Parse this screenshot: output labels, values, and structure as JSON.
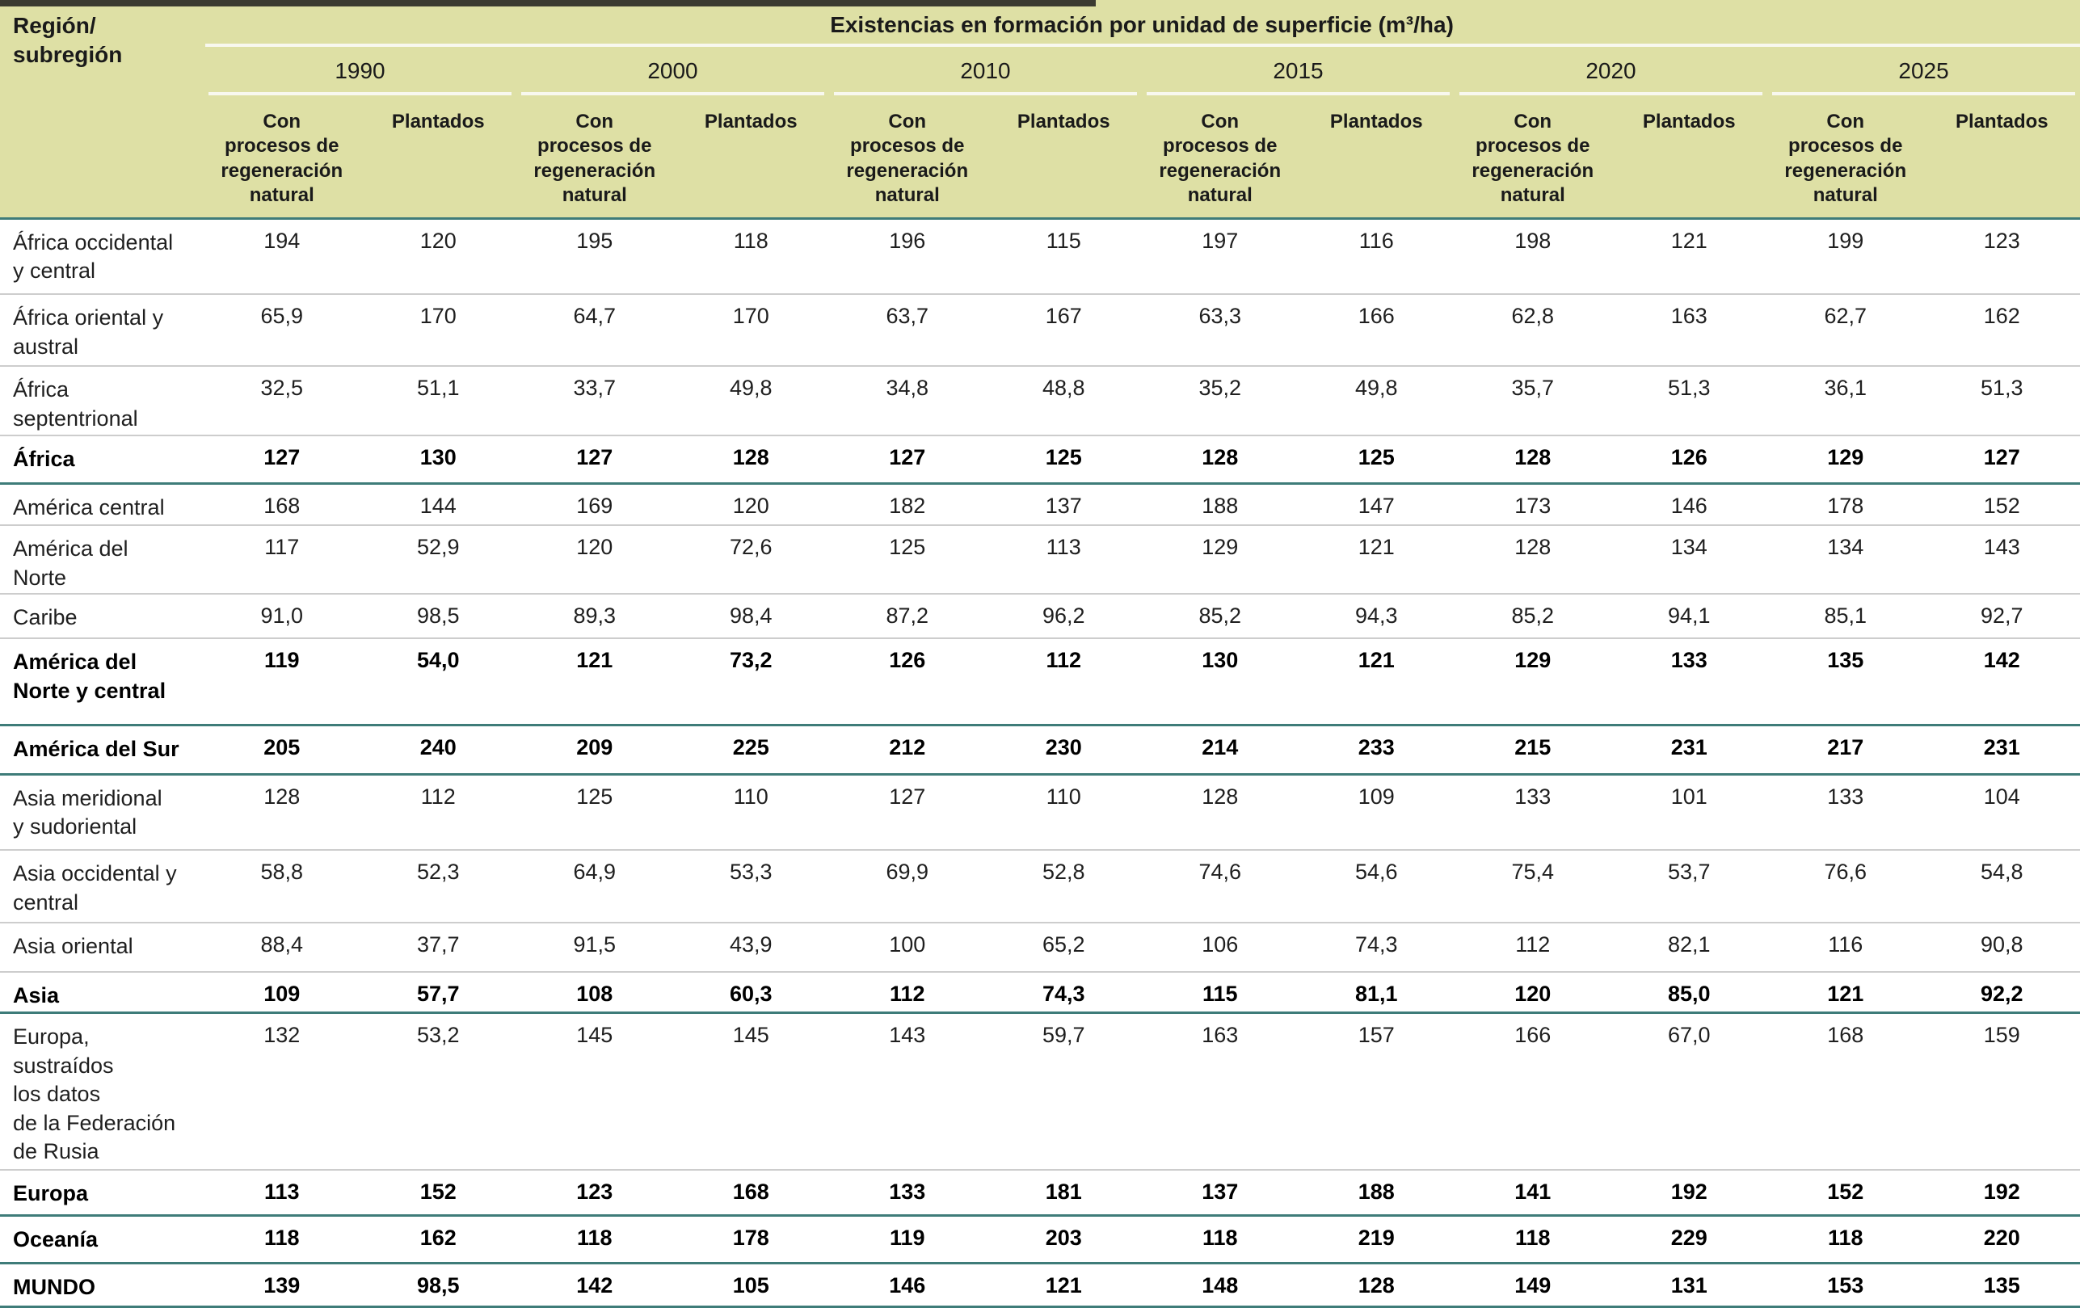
{
  "colors": {
    "header-bg": "#dee0a5",
    "rule-teal": "#3e7c79",
    "separator-gray": "#cdcdcd",
    "cream-line": "#f8f8ef",
    "caption-bar": "#3b3b31",
    "text-dark": "#1f1f1f"
  },
  "table": {
    "corner_header": "Región/\nsubregión",
    "title": "Existencias en formación por unidad de superficie (m³/ha)",
    "years": [
      "1990",
      "2000",
      "2010",
      "2015",
      "2020",
      "2025"
    ],
    "subheaders": {
      "natural": "Con\nprocesos de\nregeneración\nnatural",
      "planted": "Plantados"
    },
    "rows": [
      {
        "label": "África occidental\ny central",
        "total": false,
        "values": [
          "194",
          "120",
          "195",
          "118",
          "196",
          "115",
          "197",
          "116",
          "198",
          "121",
          "199",
          "123"
        ]
      },
      {
        "label": "África oriental y\naustral",
        "total": false,
        "values": [
          "65,9",
          "170",
          "64,7",
          "170",
          "63,7",
          "167",
          "63,3",
          "166",
          "62,8",
          "163",
          "62,7",
          "162"
        ]
      },
      {
        "label": "África\nseptentrional",
        "total": false,
        "values": [
          "32,5",
          "51,1",
          "33,7",
          "49,8",
          "34,8",
          "48,8",
          "35,2",
          "49,8",
          "35,7",
          "51,3",
          "36,1",
          "51,3"
        ]
      },
      {
        "label": "África",
        "total": true,
        "values": [
          "127",
          "130",
          "127",
          "128",
          "127",
          "125",
          "128",
          "125",
          "128",
          "126",
          "129",
          "127"
        ]
      },
      {
        "label": "América central",
        "total": false,
        "values": [
          "168",
          "144",
          "169",
          "120",
          "182",
          "137",
          "188",
          "147",
          "173",
          "146",
          "178",
          "152"
        ]
      },
      {
        "label": "América del\nNorte",
        "total": false,
        "values": [
          "117",
          "52,9",
          "120",
          "72,6",
          "125",
          "113",
          "129",
          "121",
          "128",
          "134",
          "134",
          "143"
        ]
      },
      {
        "label": "Caribe",
        "total": false,
        "values": [
          "91,0",
          "98,5",
          "89,3",
          "98,4",
          "87,2",
          "96,2",
          "85,2",
          "94,3",
          "85,2",
          "94,1",
          "85,1",
          "92,7"
        ]
      },
      {
        "label": "América del\nNorte y central",
        "total": true,
        "values": [
          "119",
          "54,0",
          "121",
          "73,2",
          "126",
          "112",
          "130",
          "121",
          "129",
          "133",
          "135",
          "142"
        ]
      },
      {
        "label": "América del Sur",
        "total": true,
        "values": [
          "205",
          "240",
          "209",
          "225",
          "212",
          "230",
          "214",
          "233",
          "215",
          "231",
          "217",
          "231"
        ]
      },
      {
        "label": "Asia meridional\ny sudoriental",
        "total": false,
        "values": [
          "128",
          "112",
          "125",
          "110",
          "127",
          "110",
          "128",
          "109",
          "133",
          "101",
          "133",
          "104"
        ]
      },
      {
        "label": "Asia occidental y\ncentral",
        "total": false,
        "values": [
          "58,8",
          "52,3",
          "64,9",
          "53,3",
          "69,9",
          "52,8",
          "74,6",
          "54,6",
          "75,4",
          "53,7",
          "76,6",
          "54,8"
        ]
      },
      {
        "label": "Asia oriental",
        "total": false,
        "values": [
          "88,4",
          "37,7",
          "91,5",
          "43,9",
          "100",
          "65,2",
          "106",
          "74,3",
          "112",
          "82,1",
          "116",
          "90,8"
        ]
      },
      {
        "label": "Asia",
        "total": true,
        "values": [
          "109",
          "57,7",
          "108",
          "60,3",
          "112",
          "74,3",
          "115",
          "81,1",
          "120",
          "85,0",
          "121",
          "92,2"
        ]
      },
      {
        "label": "Europa,\nsustraídos\nlos datos\nde la Federación\nde Rusia",
        "total": false,
        "values": [
          "132",
          "53,2",
          "145",
          "145",
          "143",
          "59,7",
          "163",
          "157",
          "166",
          "67,0",
          "168",
          "159"
        ]
      },
      {
        "label": "Europa",
        "total": true,
        "values": [
          "113",
          "152",
          "123",
          "168",
          "133",
          "181",
          "137",
          "188",
          "141",
          "192",
          "152",
          "192"
        ]
      },
      {
        "label": "Oceanía",
        "total": true,
        "values": [
          "118",
          "162",
          "118",
          "178",
          "119",
          "203",
          "118",
          "219",
          "118",
          "229",
          "118",
          "220"
        ]
      },
      {
        "label": "MUNDO",
        "total": true,
        "values": [
          "139",
          "98,5",
          "142",
          "105",
          "146",
          "121",
          "148",
          "128",
          "149",
          "131",
          "153",
          "135"
        ]
      }
    ]
  }
}
